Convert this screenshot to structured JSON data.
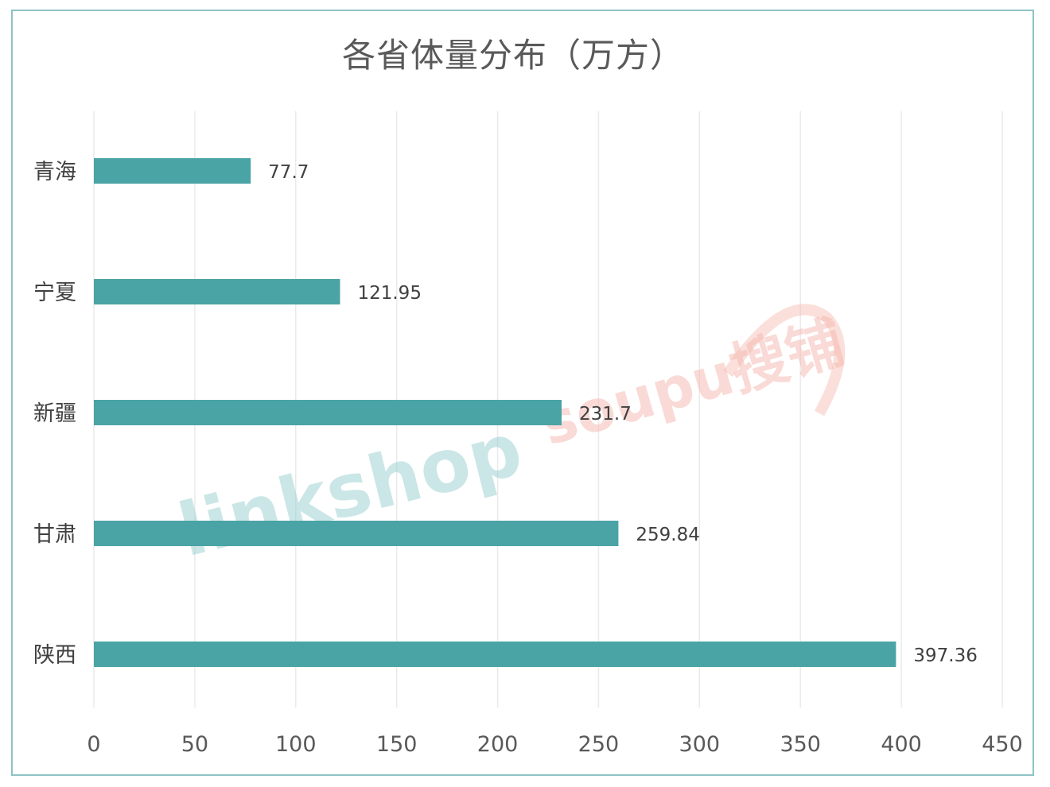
{
  "chart_data": {
    "type": "bar",
    "orientation": "horizontal",
    "title": "各省体量分布（万方）",
    "categories": [
      "青海",
      "宁夏",
      "新疆",
      "甘肃",
      "陕西"
    ],
    "values": [
      77.7,
      121.95,
      231.7,
      259.84,
      397.36
    ],
    "data_labels": [
      "77.7",
      "121.95",
      "231.7",
      "259.84",
      "397.36"
    ],
    "xlim": [
      0,
      450
    ],
    "xticks": [
      0,
      50,
      100,
      150,
      200,
      250,
      300,
      350,
      400,
      450
    ],
    "xtick_labels": [
      "0",
      "50",
      "100",
      "150",
      "200",
      "250",
      "300",
      "350",
      "400",
      "450"
    ],
    "grid": true,
    "bar_color": "#4aa3a5",
    "grid_color": "#eaeaea",
    "legend": "none"
  },
  "watermarks": {
    "linkshop": "linkshop",
    "soupu": "soupu搜铺",
    "linkshop_color": "#8ec9cc",
    "soupu_color": "#f4b7ae"
  }
}
